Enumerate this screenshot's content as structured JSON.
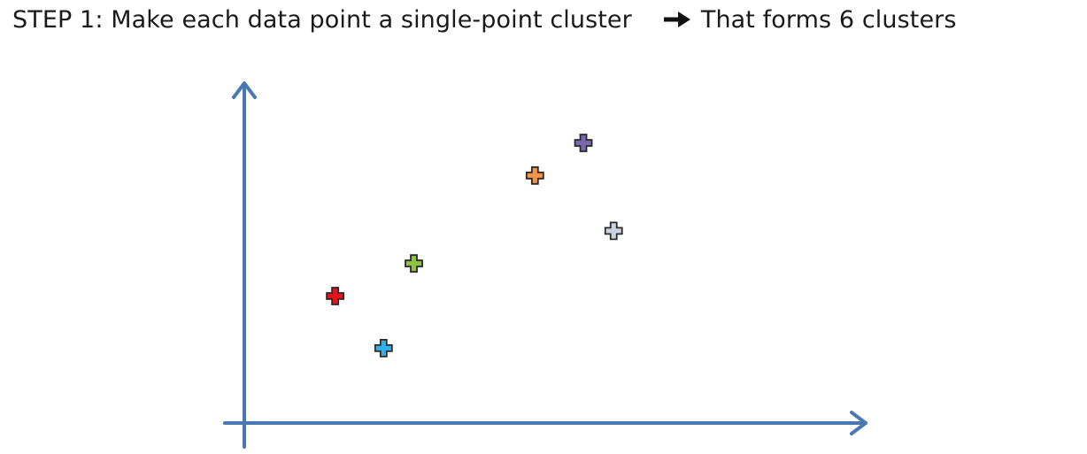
{
  "heading": {
    "step": "STEP 1",
    "separator": ":",
    "instruction": "Make each data point a single-point cluster",
    "arrow_icon": "right-arrow-icon",
    "result": "That forms 6 clusters"
  },
  "chart_data": {
    "type": "scatter",
    "title": "",
    "xlabel": "",
    "ylabel": "",
    "xlim": [
      0,
      10
    ],
    "ylim": [
      0,
      10
    ],
    "grid": false,
    "legend": "none",
    "axis_color": "#4a78b0",
    "marker": "cross",
    "points": [
      {
        "x": 1.5,
        "y": 3.9,
        "color": "#e0151c"
      },
      {
        "x": 2.3,
        "y": 2.3,
        "color": "#2cb1ea"
      },
      {
        "x": 2.8,
        "y": 4.9,
        "color": "#8cc63e"
      },
      {
        "x": 4.8,
        "y": 7.6,
        "color": "#f2944a"
      },
      {
        "x": 5.6,
        "y": 8.6,
        "color": "#7a68b3"
      },
      {
        "x": 6.1,
        "y": 5.9,
        "color": "#c9d2e0"
      }
    ]
  }
}
